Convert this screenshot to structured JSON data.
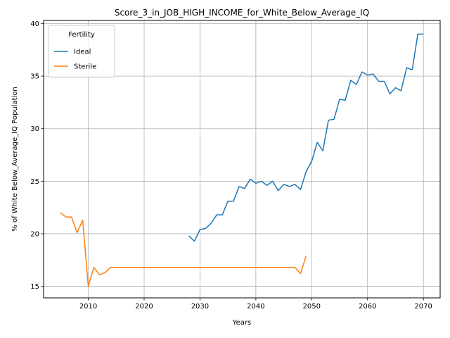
{
  "chart_data": {
    "type": "line",
    "title": "Score_3_in_JOB_HIGH_INCOME_for_White_Below_Average_IQ",
    "xlabel": "Years",
    "ylabel": "% of White Below_Average_IQ Population",
    "xlim": [
      2002,
      2073
    ],
    "ylim": [
      13.9,
      40.3
    ],
    "xticks": [
      2010,
      2020,
      2030,
      2040,
      2050,
      2060,
      2070
    ],
    "yticks": [
      15,
      20,
      25,
      30,
      35,
      40
    ],
    "grid": true,
    "legend": {
      "title": "Fertility",
      "placement": "top-left"
    },
    "series": [
      {
        "name": "Ideal",
        "color": "#1f77b4",
        "x": [
          2028,
          2029,
          2030,
          2031,
          2032,
          2033,
          2034,
          2035,
          2036,
          2037,
          2038,
          2039,
          2040,
          2041,
          2042,
          2043,
          2044,
          2045,
          2046,
          2047,
          2048,
          2049,
          2050,
          2051,
          2052,
          2053,
          2054,
          2055,
          2056,
          2057,
          2058,
          2059,
          2060,
          2061,
          2062,
          2063,
          2064,
          2065,
          2066,
          2067,
          2068,
          2069,
          2070
        ],
        "y": [
          19.8,
          19.3,
          20.4,
          20.5,
          21.0,
          21.8,
          21.8,
          23.1,
          23.1,
          24.5,
          24.3,
          25.2,
          24.8,
          25.0,
          24.6,
          25.0,
          24.1,
          24.7,
          24.5,
          24.7,
          24.2,
          25.9,
          26.9,
          28.7,
          27.9,
          30.8,
          30.9,
          32.8,
          32.7,
          34.6,
          34.2,
          35.4,
          35.1,
          35.2,
          34.5,
          34.5,
          33.3,
          33.9,
          33.6,
          35.8,
          35.6,
          39.0,
          39.0
        ]
      },
      {
        "name": "Sterile",
        "color": "#ff7f0e",
        "x": [
          2005,
          2006,
          2007,
          2008,
          2009,
          2010,
          2011,
          2012,
          2013,
          2014,
          2015,
          2016,
          2017,
          2018,
          2019,
          2020,
          2021,
          2022,
          2023,
          2024,
          2025,
          2026,
          2027,
          2028,
          2029,
          2030,
          2031,
          2032,
          2033,
          2034,
          2035,
          2036,
          2037,
          2038,
          2039,
          2040,
          2041,
          2042,
          2043,
          2044,
          2045,
          2046,
          2047,
          2048,
          2049
        ],
        "y": [
          22.0,
          21.6,
          21.6,
          20.1,
          21.3,
          15.0,
          16.8,
          16.1,
          16.3,
          16.8,
          16.8,
          16.8,
          16.8,
          16.8,
          16.8,
          16.8,
          16.8,
          16.8,
          16.8,
          16.8,
          16.8,
          16.8,
          16.8,
          16.8,
          16.8,
          16.8,
          16.8,
          16.8,
          16.8,
          16.8,
          16.8,
          16.8,
          16.8,
          16.8,
          16.8,
          16.8,
          16.8,
          16.8,
          16.8,
          16.8,
          16.8,
          16.8,
          16.8,
          16.2,
          17.9
        ]
      }
    ]
  }
}
